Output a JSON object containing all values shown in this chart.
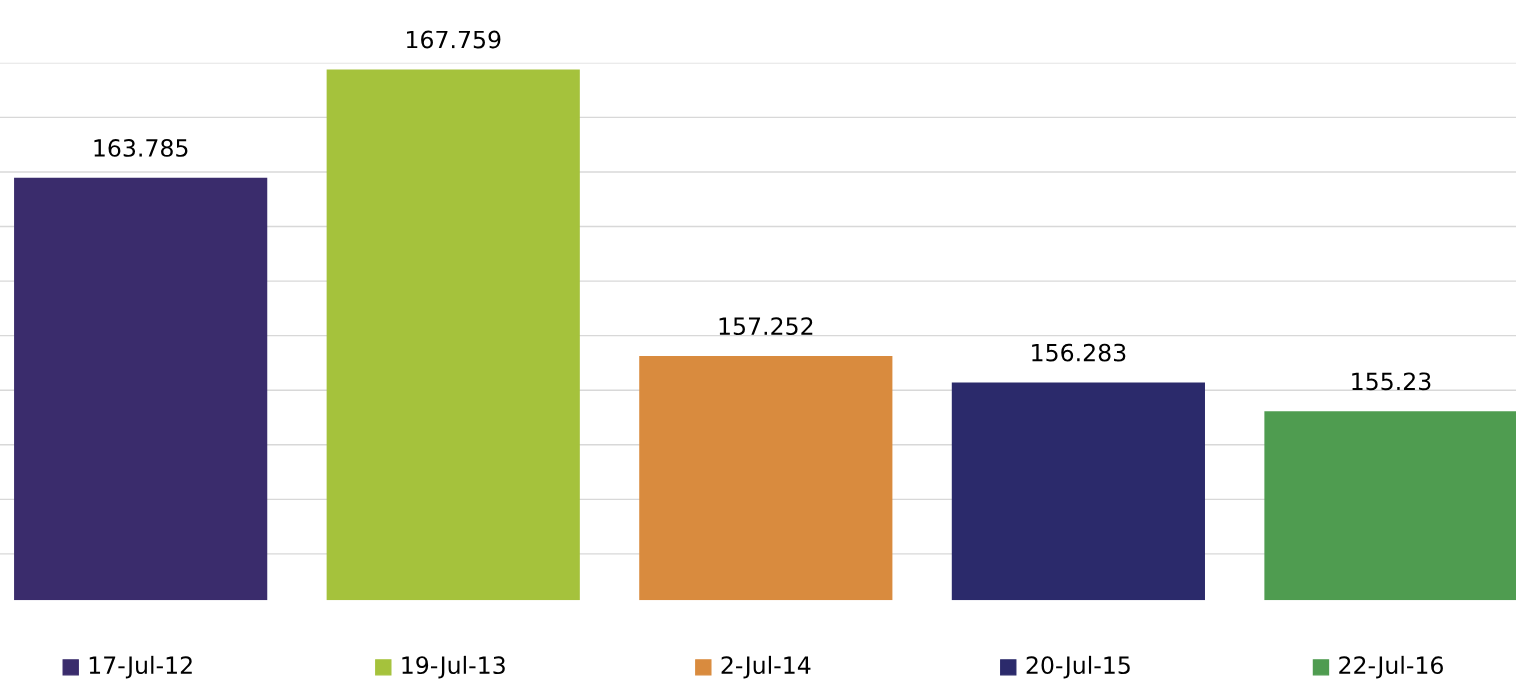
{
  "chart_data": {
    "type": "bar",
    "categories": [
      "17-Jul-12",
      "19-Jul-13",
      "2-Jul-14",
      "20-Jul-15",
      "22-Jul-16"
    ],
    "values": [
      163.785,
      167.759,
      157.252,
      156.283,
      155.23
    ],
    "colors": [
      "#3a2c6c",
      "#a5c23c",
      "#d98b3e",
      "#2b2a6b",
      "#4f9c50"
    ],
    "data_labels": true,
    "ylim": [
      148.3,
      168
    ],
    "yticks": [
      {
        "value": 150,
        "label": null
      },
      {
        "value": 152,
        "label": null
      },
      {
        "value": 154,
        "label": null
      },
      {
        "value": 156,
        "label": null
      },
      {
        "value": 158,
        "label": null
      },
      {
        "value": 160,
        "label": null
      },
      {
        "value": 162,
        "label": null
      },
      {
        "value": 164,
        "label": null
      },
      {
        "value": 166,
        "label": null
      },
      {
        "value": 168,
        "label": null
      }
    ],
    "grid": "y"
  }
}
